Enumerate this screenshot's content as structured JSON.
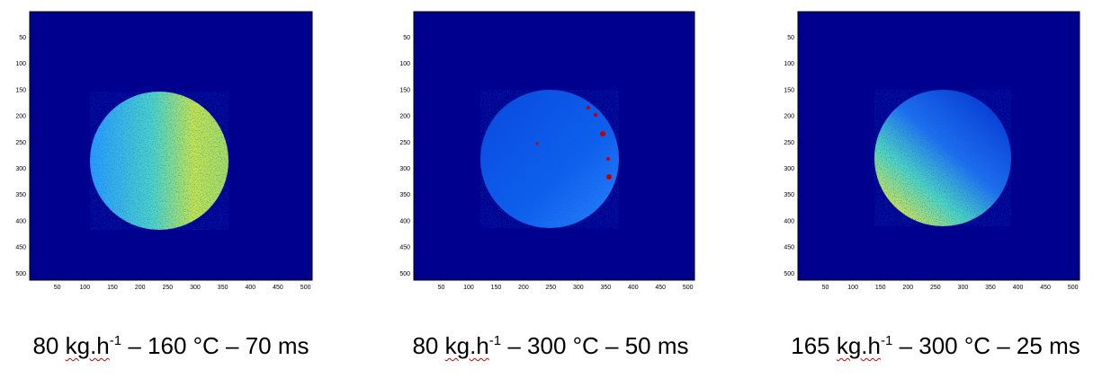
{
  "panels": [
    {
      "caption": {
        "number": "80 ",
        "unit": "kg.h",
        "superscript": "-1",
        "rest": " – 160 °C – 70 ms"
      },
      "xlim": [
        0,
        512
      ],
      "ylim": [
        0,
        512
      ],
      "xticks": [
        50,
        100,
        150,
        200,
        250,
        300,
        350,
        400,
        450,
        500
      ],
      "yticks": [
        50,
        100,
        150,
        200,
        250,
        300,
        350,
        400,
        450,
        500
      ]
    },
    {
      "caption": {
        "number": "80 ",
        "unit": "kg.h",
        "superscript": "-1",
        "rest": " – 300 °C – 50 ms"
      },
      "xlim": [
        0,
        512
      ],
      "ylim": [
        0,
        512
      ],
      "xticks": [
        50,
        100,
        150,
        200,
        250,
        300,
        350,
        400,
        450,
        500
      ],
      "yticks": [
        50,
        100,
        150,
        200,
        250,
        300,
        350,
        400,
        450,
        500
      ]
    },
    {
      "caption": {
        "number": "165 ",
        "unit": "kg.h",
        "superscript": "-1",
        "rest": " – 300 °C – 25 ms"
      },
      "xlim": [
        0,
        512
      ],
      "ylim": [
        0,
        512
      ],
      "xticks": [
        50,
        100,
        150,
        200,
        250,
        300,
        350,
        400,
        450,
        500
      ],
      "yticks": [
        50,
        100,
        150,
        200,
        250,
        300,
        350,
        400,
        450,
        500
      ]
    }
  ]
}
